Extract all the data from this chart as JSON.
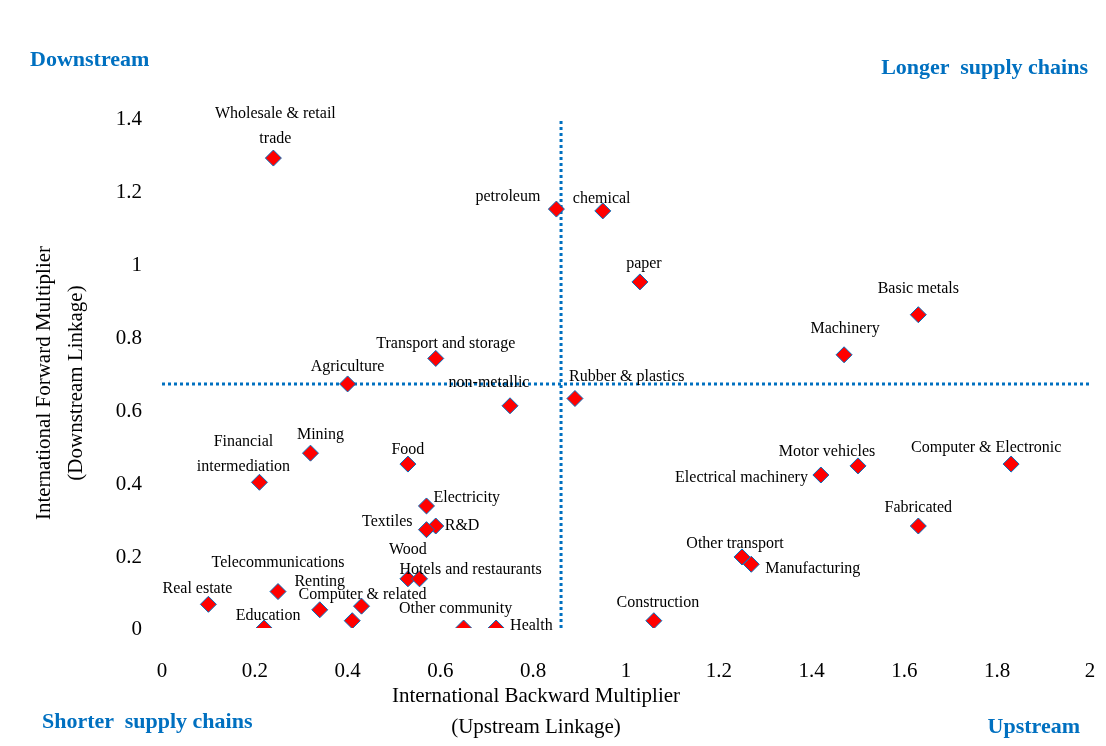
{
  "chart_data": {
    "type": "scatter",
    "xlabel": "International Backward Multiplier (Upstream Linkage)",
    "ylabel": "International Forward Multiplier (Downstream Linkage)",
    "series": [
      {
        "color": "#ff0000",
        "x": [
          0.24,
          0.85,
          0.95,
          1.03,
          1.63,
          1.47,
          0.59,
          0.4,
          0.75,
          0.89,
          0.32,
          0.53,
          0.21,
          1.5,
          1.83,
          1.42,
          0.57,
          0.59,
          0.57,
          1.63,
          1.25,
          1.27,
          0.53,
          0.555,
          0.25,
          0.1,
          0.34,
          0.43,
          0.22,
          0.65,
          0.72,
          1.06,
          0.41
        ],
        "values": [
          1.29,
          1.15,
          1.145,
          0.95,
          0.86,
          0.75,
          0.74,
          0.67,
          0.61,
          0.63,
          0.48,
          0.45,
          0.4,
          0.445,
          0.45,
          0.42,
          0.335,
          0.28,
          0.27,
          0.28,
          0.195,
          0.175,
          0.135,
          0.135,
          0.1,
          0.065,
          0.05,
          0.06,
          0,
          0,
          0,
          0.02,
          0.02
        ]
      }
    ],
    "xlim": [
      0,
      2
    ],
    "ylim": [
      0,
      1.4
    ],
    "xticks": [
      0,
      0.2,
      0.4,
      0.6,
      0.8,
      1,
      1.2,
      1.4,
      1.6,
      1.8,
      2
    ],
    "yticks": [
      0,
      0.2,
      0.4,
      0.6,
      0.8,
      1,
      1.2,
      1.4
    ],
    "grid": false,
    "legend": false,
    "marker": "diamond",
    "ref_lines": [
      {
        "axis": "x",
        "value": 0.86,
        "color": "#0070c0",
        "line_style": "dotted"
      },
      {
        "axis": "y",
        "value": 0.67,
        "color": "#0070c0",
        "line_style": "dotted"
      }
    ],
    "annotations": [
      "Downstream",
      "Longer  supply chains",
      "Shorter  supply chains",
      "Upstream",
      {
        "text": "Wholesale & retail trade",
        "x": 0.24,
        "y": 1.29
      },
      {
        "text": "petroleum",
        "x": 0.85,
        "y": 1.15
      },
      {
        "text": "chemical",
        "x": 0.95,
        "y": 1.145
      },
      {
        "text": "paper",
        "x": 1.03,
        "y": 0.95
      },
      {
        "text": "Basic metals",
        "x": 1.63,
        "y": 0.86
      },
      {
        "text": "Machinery",
        "x": 1.47,
        "y": 0.75
      },
      {
        "text": "Transport and storage",
        "x": 0.59,
        "y": 0.74
      },
      {
        "text": "Agriculture",
        "x": 0.4,
        "y": 0.67
      },
      {
        "text": "non-metallic",
        "x": 0.75,
        "y": 0.61
      },
      {
        "text": "Rubber & plastics",
        "x": 0.89,
        "y": 0.63
      },
      {
        "text": "Mining",
        "x": 0.32,
        "y": 0.48
      },
      {
        "text": "Food",
        "x": 0.53,
        "y": 0.45
      },
      {
        "text": "Financial intermediation",
        "x": 0.21,
        "y": 0.4
      },
      {
        "text": "Motor vehicles",
        "x": 1.5,
        "y": 0.445
      },
      {
        "text": "Computer & Electronic",
        "x": 1.83,
        "y": 0.45
      },
      {
        "text": "Electrical machinery",
        "x": 1.42,
        "y": 0.42
      },
      {
        "text": "Electricity",
        "x": 0.57,
        "y": 0.335
      },
      {
        "text": "R&D",
        "x": 0.59,
        "y": 0.28
      },
      {
        "text": "Textiles",
        "x": 0.57,
        "y": 0.27
      },
      {
        "text": "Fabricated",
        "x": 1.63,
        "y": 0.28
      },
      {
        "text": "Other transport",
        "x": 1.25,
        "y": 0.195
      },
      {
        "text": "Manufacturing",
        "x": 1.27,
        "y": 0.175
      },
      {
        "text": "Wood",
        "x": 0.53,
        "y": 0.135
      },
      {
        "text": "Hotels and restaurants",
        "x": 0.555,
        "y": 0.135
      },
      {
        "text": "Telecommunications",
        "x": 0.25,
        "y": 0.1
      },
      {
        "text": "Real estate",
        "x": 0.1,
        "y": 0.065
      },
      {
        "text": "Renting",
        "x": 0.34,
        "y": 0.05
      },
      {
        "text": "Computer & related",
        "x": 0.43,
        "y": 0.06
      },
      {
        "text": "Education",
        "x": 0.22,
        "y": 0
      },
      {
        "text": "Other community",
        "x": 0.65,
        "y": 0
      },
      {
        "text": "Health",
        "x": 0.72,
        "y": 0
      },
      {
        "text": "Construction",
        "x": 1.06,
        "y": 0.02
      }
    ]
  }
}
